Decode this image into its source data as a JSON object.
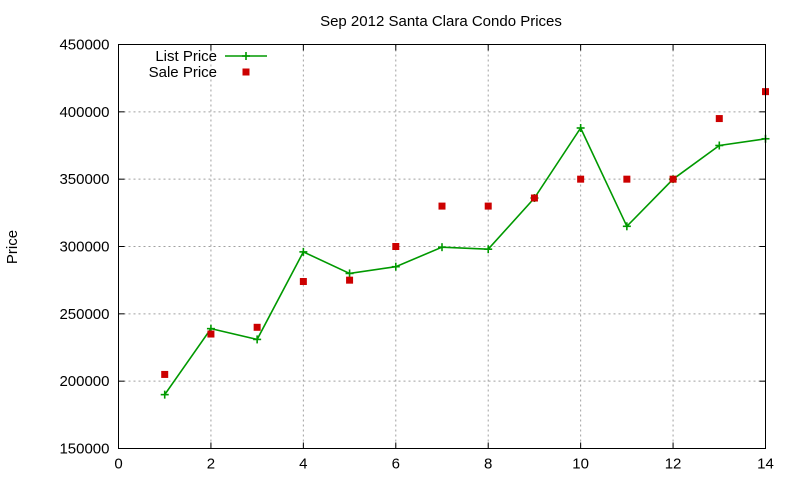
{
  "chart_data": {
    "type": "line",
    "title": "Sep 2012 Santa Clara Condo Prices",
    "xlabel": "",
    "ylabel": "Price",
    "xlim": [
      0,
      14
    ],
    "ylim": [
      150000,
      450000
    ],
    "xticks": [
      0,
      2,
      4,
      6,
      8,
      10,
      12,
      14
    ],
    "yticks": [
      150000,
      200000,
      250000,
      300000,
      350000,
      400000,
      450000
    ],
    "grid": true,
    "legend_position": "top-left",
    "series": [
      {
        "name": "List Price",
        "style": "line-points",
        "marker": "plus",
        "color": "#009900",
        "x": [
          1,
          2,
          3,
          4,
          5,
          6,
          7,
          8,
          9,
          10,
          11,
          12,
          13,
          14
        ],
        "y": [
          190000,
          239000,
          231000,
          296000,
          280000,
          285000,
          299500,
          298000,
          336000,
          388000,
          315000,
          350000,
          375000,
          380000
        ]
      },
      {
        "name": "Sale Price",
        "style": "points",
        "marker": "square",
        "color": "#cc0000",
        "x": [
          1,
          2,
          3,
          4,
          5,
          6,
          7,
          8,
          9,
          10,
          11,
          12,
          13,
          14
        ],
        "y": [
          205000,
          235000,
          240000,
          274000,
          275000,
          300000,
          330000,
          330000,
          336000,
          350000,
          350000,
          350000,
          395000,
          415000
        ]
      }
    ]
  }
}
